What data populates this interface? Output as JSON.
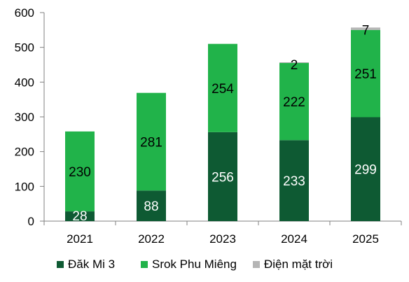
{
  "chart_data": {
    "type": "bar",
    "stacked": true,
    "categories": [
      "2021",
      "2022",
      "2023",
      "2024",
      "2025"
    ],
    "series": [
      {
        "name": "Đăk Mi 3",
        "values": [
          28,
          88,
          256,
          233,
          299
        ],
        "color": "#0e5a33"
      },
      {
        "name": "Srok Phu Miêng",
        "values": [
          230,
          281,
          254,
          222,
          251
        ],
        "color": "#21b34a"
      },
      {
        "name": "Điện mặt trời",
        "values": [
          0,
          0,
          0,
          2,
          7
        ],
        "color": "#b5b5b5"
      }
    ],
    "data_labels": [
      [
        "28",
        "88",
        "256",
        "233",
        "299"
      ],
      [
        "230",
        "281",
        "254",
        "222",
        "251"
      ],
      [
        "",
        "",
        "",
        "2",
        "7"
      ]
    ],
    "label_colors": [
      "#ffffff",
      "#000000",
      "#000000"
    ],
    "y_ticks": [
      "0",
      "100",
      "200",
      "300",
      "400",
      "500",
      "600"
    ],
    "ylim": [
      0,
      600
    ],
    "grid": false,
    "legend_position": "bottom"
  }
}
